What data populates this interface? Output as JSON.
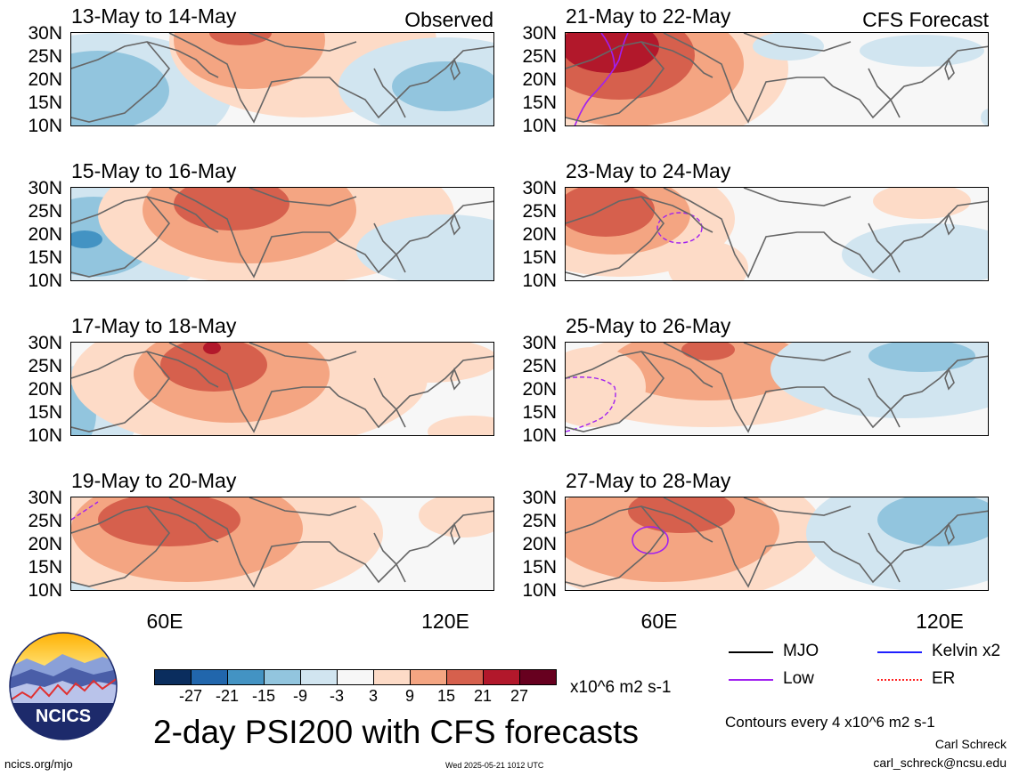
{
  "header": {
    "left_tag": "Observed",
    "right_tag": "CFS Forecast"
  },
  "panels": {
    "observed": [
      {
        "title": "13-May to 14-May"
      },
      {
        "title": "15-May to 16-May"
      },
      {
        "title": "17-May to 18-May"
      },
      {
        "title": "19-May to 20-May"
      }
    ],
    "forecast": [
      {
        "title": "21-May to 22-May"
      },
      {
        "title": "23-May to 24-May"
      },
      {
        "title": "25-May to 26-May"
      },
      {
        "title": "27-May to 28-May"
      }
    ]
  },
  "axes": {
    "lat_labels": [
      "30N",
      "25N",
      "20N",
      "15N",
      "10N"
    ],
    "lon_labels": [
      "60E",
      "120E"
    ]
  },
  "colorbar": {
    "ticks": [
      "-27",
      "-21",
      "-15",
      "-9",
      "-3",
      "3",
      "9",
      "15",
      "21",
      "27"
    ],
    "units": "x10^6 m2 s-1",
    "colors": [
      "#0a2d5e",
      "#2166ac",
      "#4393c3",
      "#92c5de",
      "#d1e5f0",
      "#f7f7f7",
      "#fddbc7",
      "#f4a582",
      "#d6604d",
      "#b2182b",
      "#67001f"
    ]
  },
  "legend": {
    "mjo": {
      "label": "MJO",
      "color": "#000000"
    },
    "kelvin": {
      "label": "Kelvin x2",
      "color": "#1f1fff"
    },
    "low": {
      "label": "Low",
      "color": "#a020f0"
    },
    "er": {
      "label": "ER",
      "color": "#ff2020"
    }
  },
  "main_title": "2-day PSI200 with CFS forecasts",
  "contour_note": "Contours every 4 x10^6 m2 s-1",
  "author": "Carl Schreck",
  "email": "carl_schreck@ncsu.edu",
  "site": "ncics.org/mjo",
  "timestamp": "Wed 2025-05-21 1012 UTC",
  "logo_text": "NCICS"
}
